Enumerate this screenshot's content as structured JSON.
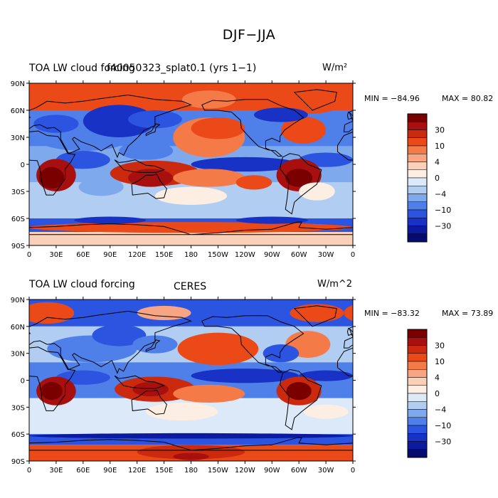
{
  "figure": {
    "title": "DJF−JJA"
  },
  "panels": [
    {
      "left_title": "TOA LW cloud forcing",
      "center_title": "f40050323_splat0.1 (yrs 1−1)",
      "units": "W/m²",
      "min_label": "MIN = −84.96",
      "max_label": "MAX =  80.82"
    },
    {
      "left_title": "TOA LW cloud forcing",
      "center_title": "CERES",
      "units": "W/m^2",
      "min_label": "MIN = −83.32",
      "max_label": "MAX =  73.89"
    }
  ],
  "axes": {
    "lat_ticks": [
      "90N",
      "60N",
      "30N",
      "0",
      "30S",
      "60S",
      "90S"
    ],
    "lon_ticks": [
      "0",
      "30E",
      "60E",
      "90E",
      "120E",
      "150E",
      "180",
      "150W",
      "120W",
      "90W",
      "60W",
      "30W",
      "0"
    ]
  },
  "colorbar": {
    "labels": [
      "30",
      "10",
      "4",
      "0",
      "−4",
      "−10",
      "−30"
    ],
    "colors": [
      "#7a0000",
      "#a80f0f",
      "#cc2a0e",
      "#eb4a18",
      "#f47a48",
      "#f7a582",
      "#fbd0b8",
      "#fdeee3",
      "#dbe9f8",
      "#b1cef2",
      "#7ea9ec",
      "#4f7fe8",
      "#2b55e0",
      "#1732c4",
      "#0c1aa0",
      "#050c70"
    ]
  },
  "chart_data": {
    "type": "heatmap",
    "title": "DJF−JJA",
    "variable": "TOA LW cloud forcing",
    "units": "W/m^2",
    "lat_range": [
      -90,
      90
    ],
    "lon_range": [
      0,
      360
    ],
    "contour_levels": [
      -30,
      -10,
      -4,
      0,
      4,
      10,
      30
    ],
    "panels": [
      {
        "name": "f40050323_splat0.1 (yrs 1−1)",
        "min": -84.96,
        "max": 80.82
      },
      {
        "name": "CERES",
        "min": -83.32,
        "max": 73.89
      }
    ]
  }
}
